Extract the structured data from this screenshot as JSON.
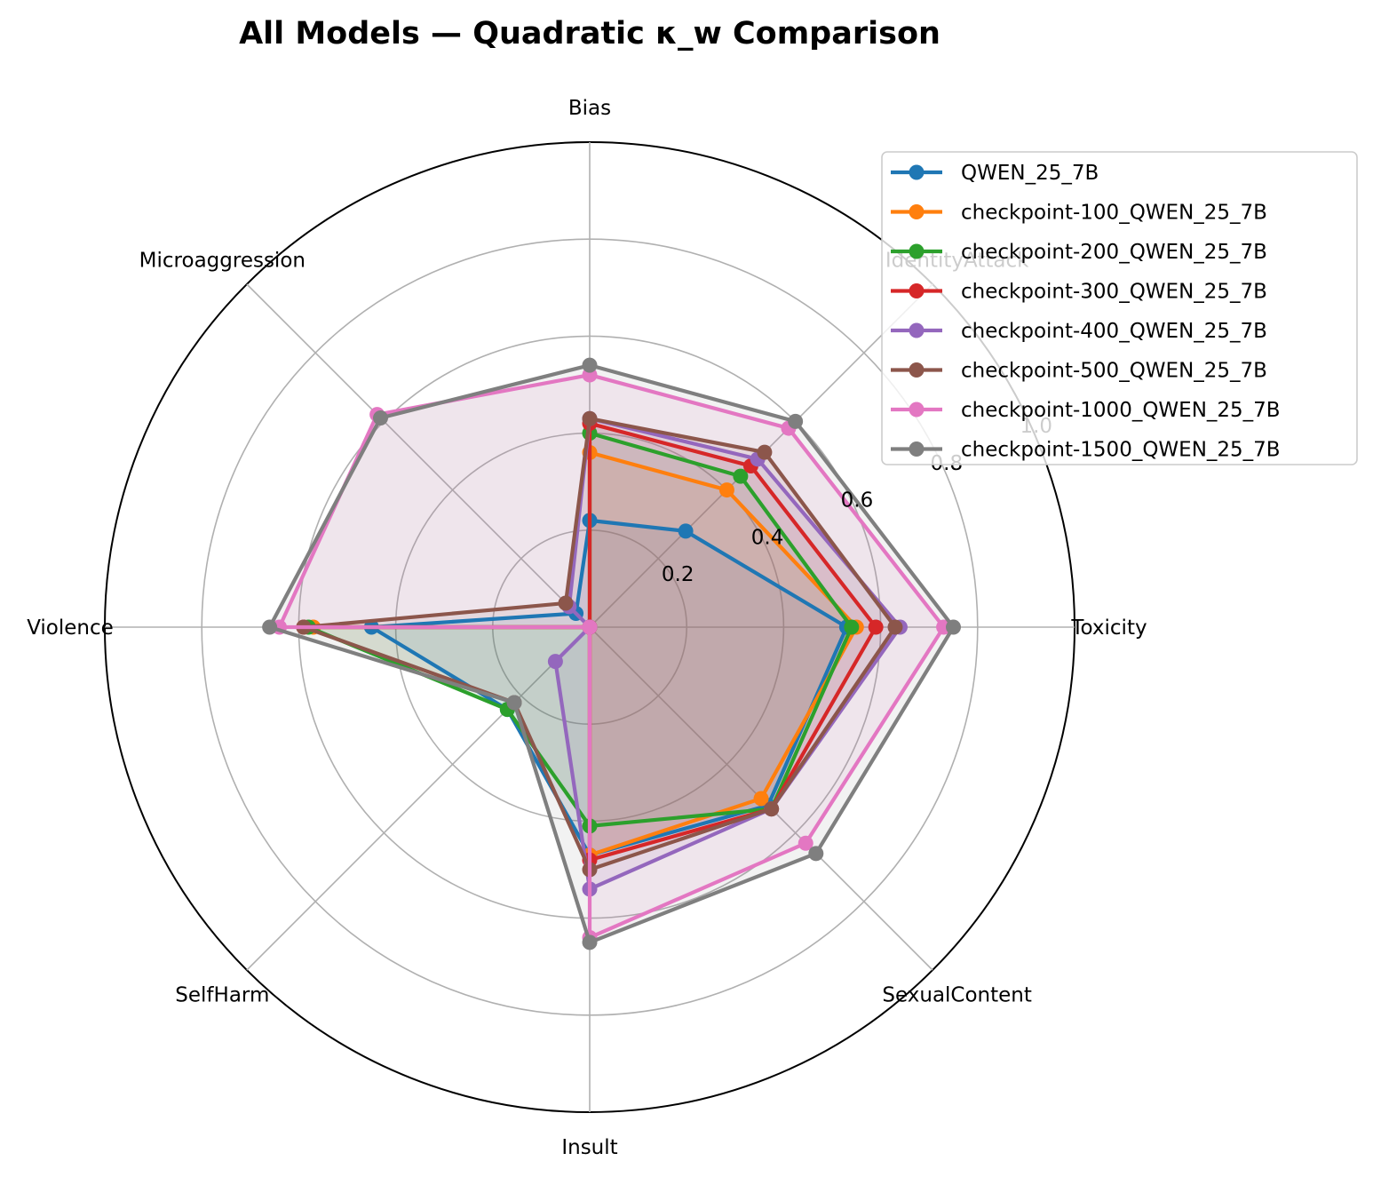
{
  "chart_data": {
    "type": "radar",
    "title": "All Models — Quadratic κ_w Comparison",
    "axes": [
      "Toxicity",
      "IdentityAttack",
      "Bias",
      "Microaggression",
      "Violence",
      "SelfHarm",
      "Insult",
      "SexualContent"
    ],
    "r_ticks": [
      0.2,
      0.4,
      0.6,
      0.8,
      1.0
    ],
    "r_tick_labels": [
      "0.2",
      "0.4",
      "0.6",
      "0.8",
      "1.0"
    ],
    "rlim": [
      0,
      1.0
    ],
    "grid": true,
    "legend_position": "top-right",
    "series": [
      {
        "name": "QWEN_25_7B",
        "color": "#1f77b4",
        "values": [
          0.53,
          0.28,
          0.22,
          0.04,
          0.45,
          0.24,
          0.47,
          0.52
        ]
      },
      {
        "name": "checkpoint-100_QWEN_25_7B",
        "color": "#ff7f0e",
        "values": [
          0.55,
          0.4,
          0.36,
          0.0,
          0.57,
          0.0,
          0.47,
          0.5
        ]
      },
      {
        "name": "checkpoint-200_QWEN_25_7B",
        "color": "#2ca02c",
        "values": [
          0.54,
          0.44,
          0.4,
          0.0,
          0.58,
          0.24,
          0.41,
          0.53
        ]
      },
      {
        "name": "checkpoint-300_QWEN_25_7B",
        "color": "#d62728",
        "values": [
          0.59,
          0.47,
          0.42,
          0.0,
          0.59,
          0.0,
          0.48,
          0.53
        ]
      },
      {
        "name": "checkpoint-400_QWEN_25_7B",
        "color": "#9467bd",
        "values": [
          0.64,
          0.49,
          0.43,
          0.06,
          0.0,
          0.1,
          0.54,
          0.53
        ]
      },
      {
        "name": "checkpoint-500_QWEN_25_7B",
        "color": "#8c564b",
        "values": [
          0.63,
          0.51,
          0.43,
          0.07,
          0.59,
          0.22,
          0.5,
          0.53
        ]
      },
      {
        "name": "checkpoint-1000_QWEN_25_7B",
        "color": "#e377c2",
        "values": [
          0.73,
          0.58,
          0.52,
          0.62,
          0.64,
          0.0,
          0.64,
          0.63
        ]
      },
      {
        "name": "checkpoint-1500_QWEN_25_7B",
        "color": "#7f7f7f",
        "values": [
          0.75,
          0.6,
          0.54,
          0.61,
          0.66,
          0.22,
          0.65,
          0.66
        ]
      }
    ]
  }
}
